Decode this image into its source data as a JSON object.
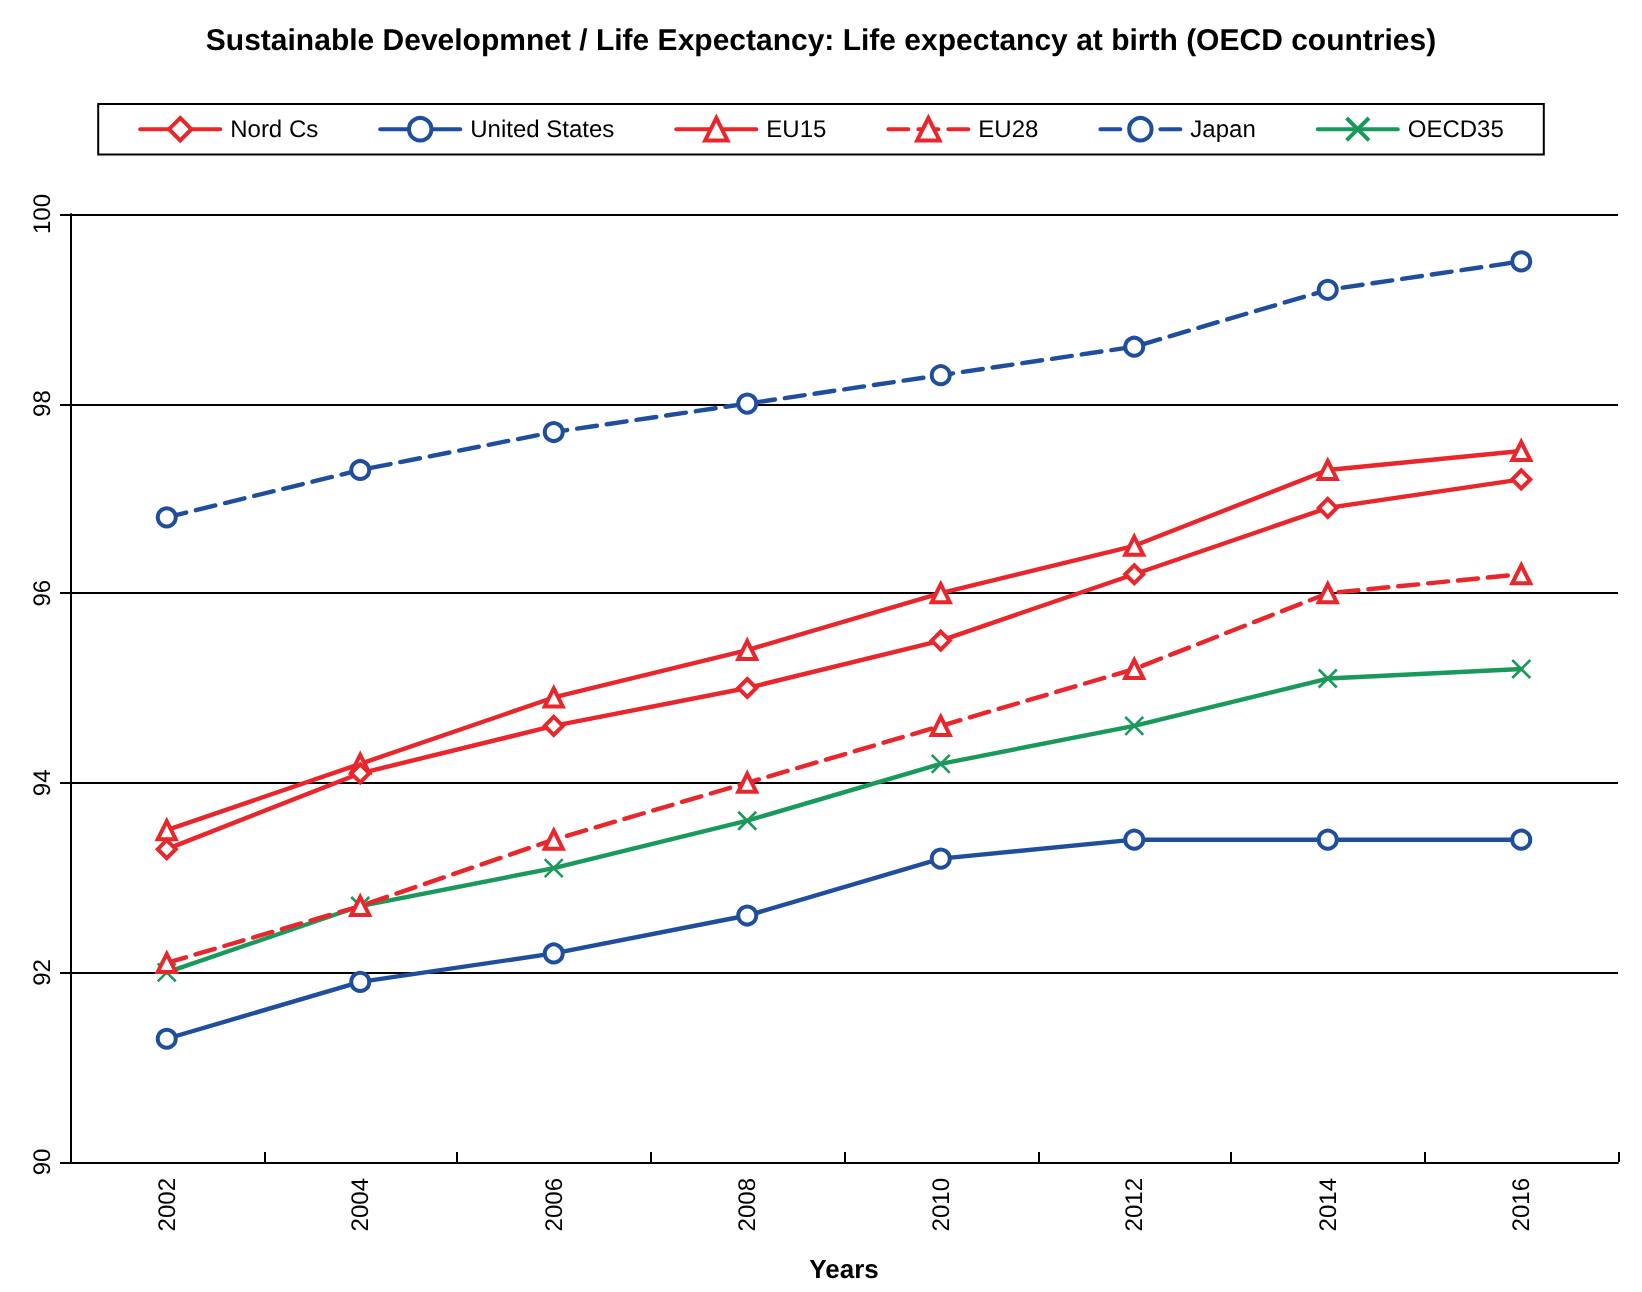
{
  "chart_data": {
    "type": "line",
    "title": "Sustainable Developmnet / Life Expectancy: Life expectancy at birth (OECD countries)",
    "xlabel": "Years",
    "categories": [
      "2002",
      "2004",
      "2006",
      "2008",
      "2010",
      "2012",
      "2014",
      "2016"
    ],
    "series": [
      {
        "name": "Nord Cs",
        "color": "#e8262b",
        "marker": "diamond",
        "line_style": "solid",
        "values": [
          93.3,
          94.1,
          94.6,
          95.0,
          95.5,
          96.2,
          96.9,
          97.2
        ]
      },
      {
        "name": "United States",
        "color": "#1f4e9c",
        "marker": "circle",
        "line_style": "solid",
        "values": [
          91.3,
          91.9,
          92.2,
          92.6,
          93.2,
          93.4,
          93.4,
          93.4
        ]
      },
      {
        "name": "EU15",
        "color": "#e8262b",
        "marker": "triangle",
        "line_style": "solid",
        "values": [
          93.5,
          94.2,
          94.9,
          95.4,
          96.0,
          96.5,
          97.3,
          97.5
        ]
      },
      {
        "name": "EU28",
        "color": "#e8262b",
        "marker": "triangle",
        "line_style": "dashed",
        "values": [
          92.1,
          92.7,
          93.4,
          94.0,
          94.6,
          95.2,
          96.0,
          96.2
        ]
      },
      {
        "name": "Japan",
        "color": "#1f4e9c",
        "marker": "circle",
        "line_style": "dashed",
        "values": [
          96.8,
          97.3,
          97.7,
          98.0,
          98.3,
          98.6,
          99.2,
          99.5
        ]
      },
      {
        "name": "OECD35",
        "color": "#1a9a5a",
        "marker": "cross",
        "line_style": "solid",
        "values": [
          92.0,
          92.7,
          93.1,
          93.6,
          94.2,
          94.6,
          95.1,
          95.2
        ]
      }
    ],
    "ylim": [
      90,
      100
    ],
    "yticks": [
      90,
      92,
      94,
      96,
      98,
      100
    ],
    "grid": "y",
    "legend": "top"
  }
}
